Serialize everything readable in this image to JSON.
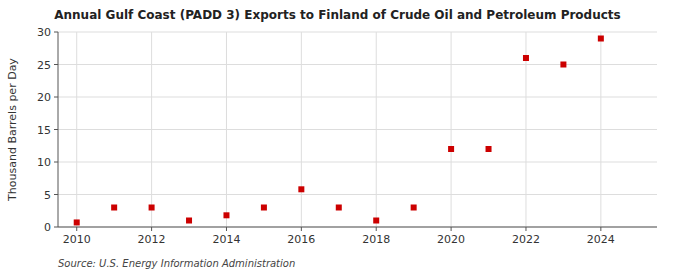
{
  "chart_data": {
    "type": "scatter",
    "title": "Annual Gulf Coast (PADD 3) Exports to Finland of Crude Oil and Petroleum Products",
    "y_label": "Thousand Barrels per Day",
    "source": "Source: U.S. Energy Information Administration",
    "x": [
      2010,
      2011,
      2012,
      2013,
      2014,
      2015,
      2016,
      2017,
      2018,
      2019,
      2020,
      2021,
      2022,
      2023,
      2024
    ],
    "values": [
      0.7,
      3.0,
      3.0,
      1.0,
      1.8,
      3.0,
      5.8,
      3.0,
      1.0,
      3.0,
      12.0,
      12.0,
      26.0,
      25.0,
      29.0
    ],
    "color": "#cc0000",
    "marker": "square",
    "xlim": [
      2009.5,
      2025.5
    ],
    "xticks": [
      2010,
      2012,
      2014,
      2016,
      2018,
      2020,
      2022,
      2024
    ],
    "ylim": [
      0,
      30
    ],
    "yticks": [
      0,
      5,
      10,
      15,
      20,
      25,
      30
    ],
    "grid": true
  }
}
